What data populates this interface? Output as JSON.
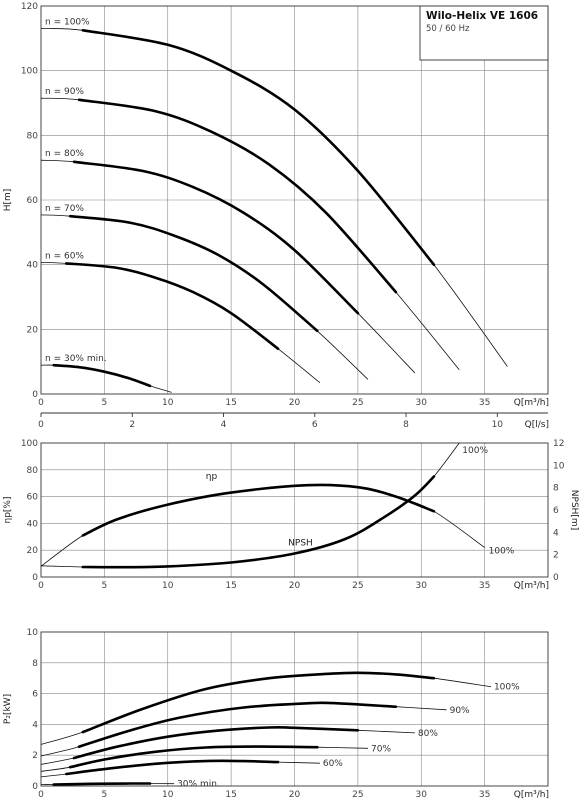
{
  "title": "Wilo-Helix VE 1606",
  "subtitle": "50 / 60 Hz",
  "chart_data": [
    {
      "type": "line",
      "name": "head",
      "xlabel": "Q[m³/h]",
      "ylabel": "H[m]",
      "xlim": [
        0,
        40
      ],
      "ylim": [
        0,
        120
      ],
      "x_ticks": [
        0,
        5,
        10,
        15,
        20,
        25,
        30,
        35
      ],
      "y_ticks": [
        0,
        20,
        40,
        60,
        80,
        100,
        120
      ],
      "secondary_x": {
        "label": "Q[l/s]",
        "ticks": [
          0,
          2,
          4,
          6,
          8,
          10
        ]
      },
      "series": [
        {
          "name": "n = 100%",
          "x": [
            0,
            3.3,
            10,
            15,
            20,
            25,
            31,
            36.8
          ],
          "y": [
            113,
            112.5,
            108,
            100,
            88,
            69,
            40,
            8.5
          ],
          "op_range": [
            3.3,
            31
          ]
        },
        {
          "name": "n = 90%",
          "x": [
            0,
            3.0,
            9,
            13.5,
            18,
            22.5,
            28,
            33
          ],
          "y": [
            91.5,
            91,
            87.5,
            81,
            71,
            56,
            31.5,
            7.5
          ],
          "op_range": [
            3.0,
            28
          ]
        },
        {
          "name": "n = 80%",
          "x": [
            0,
            2.6,
            8,
            12,
            16,
            20,
            25,
            29.5
          ],
          "y": [
            72.3,
            71.8,
            69,
            64,
            56,
            44.5,
            25,
            6.5
          ],
          "op_range": [
            2.6,
            25
          ]
        },
        {
          "name": "n = 70%",
          "x": [
            0,
            2.3,
            7,
            10.5,
            14,
            17.5,
            21.8,
            25.8
          ],
          "y": [
            55.4,
            55,
            53,
            49,
            43,
            34,
            19.5,
            4.5
          ],
          "op_range": [
            2.3,
            21.8
          ]
        },
        {
          "name": "n = 60%",
          "x": [
            0,
            2.0,
            6,
            9,
            12,
            15,
            18.7,
            22
          ],
          "y": [
            40.7,
            40.4,
            39,
            36,
            31.5,
            25,
            14,
            3.5
          ],
          "op_range": [
            2.0,
            18.7
          ]
        },
        {
          "name": "n = 30% min.",
          "x": [
            0,
            1,
            3,
            5,
            7,
            8.6,
            10.3
          ],
          "y": [
            8.9,
            8.9,
            8.3,
            6.9,
            4.8,
            2.5,
            0.5
          ],
          "op_range": [
            1,
            8.6
          ]
        }
      ]
    },
    {
      "type": "line",
      "name": "efficiency-npsh",
      "xlabel": "Q[m³/h]",
      "ylabel": "ηp[%]",
      "y2label": "NPSH[m]",
      "xlim": [
        0,
        40
      ],
      "ylim": [
        0,
        100
      ],
      "y2lim": [
        0,
        12
      ],
      "x_ticks": [
        0,
        5,
        10,
        15,
        20,
        25,
        30,
        35
      ],
      "y_ticks": [
        0,
        20,
        40,
        60,
        80,
        100
      ],
      "y2_ticks": [
        0,
        2,
        4,
        6,
        8,
        10,
        12
      ],
      "series": [
        {
          "name": "ηp",
          "axis": "left",
          "x": [
            0,
            3.3,
            6,
            10,
            15,
            21,
            25,
            28,
            31,
            35
          ],
          "y": [
            8,
            31,
            43,
            54,
            63,
            68.5,
            67,
            60,
            49,
            22
          ],
          "op_range": [
            3.3,
            31
          ],
          "end_label": "100%"
        },
        {
          "name": "NPSH",
          "axis": "right",
          "x": [
            0,
            3.3,
            6,
            10,
            15,
            20,
            24,
            27,
            29.5,
            31,
            33
          ],
          "y": [
            1.0,
            0.9,
            0.88,
            0.95,
            1.3,
            2.1,
            3.4,
            5.3,
            7.3,
            9.0,
            12
          ],
          "op_range": [
            3.3,
            31
          ],
          "end_label": "100%"
        }
      ]
    },
    {
      "type": "line",
      "name": "power",
      "xlabel": "Q[m³/h]",
      "ylabel": "P₂[kW]",
      "xlim": [
        0,
        40
      ],
      "ylim": [
        0,
        10
      ],
      "x_ticks": [
        0,
        5,
        10,
        15,
        20,
        25,
        30,
        35
      ],
      "y_ticks": [
        0,
        2,
        4,
        6,
        8,
        10
      ],
      "series": [
        {
          "name": "100%",
          "x": [
            0,
            3.3,
            8,
            13,
            18,
            23,
            25,
            28,
            31,
            35.5
          ],
          "y": [
            2.7,
            3.5,
            5.0,
            6.3,
            7.0,
            7.3,
            7.35,
            7.25,
            7.0,
            6.45
          ],
          "op_range": [
            3.3,
            31
          ]
        },
        {
          "name": "90%",
          "x": [
            0,
            3.0,
            7,
            11,
            16,
            21,
            23,
            28,
            32
          ],
          "y": [
            1.95,
            2.55,
            3.6,
            4.45,
            5.1,
            5.37,
            5.38,
            5.15,
            4.95
          ],
          "op_range": [
            3.0,
            28
          ]
        },
        {
          "name": "80%",
          "x": [
            0,
            2.6,
            6,
            10,
            14,
            18,
            20,
            25,
            29.5
          ],
          "y": [
            1.4,
            1.82,
            2.55,
            3.2,
            3.6,
            3.8,
            3.78,
            3.62,
            3.45
          ],
          "op_range": [
            2.6,
            25
          ]
        },
        {
          "name": "70%",
          "x": [
            0,
            2.3,
            5,
            9,
            13,
            17,
            21.8,
            25.8
          ],
          "y": [
            0.95,
            1.22,
            1.72,
            2.22,
            2.5,
            2.56,
            2.52,
            2.45
          ],
          "op_range": [
            2.3,
            21.8
          ]
        },
        {
          "name": "60%",
          "x": [
            0,
            2.0,
            5,
            9,
            13,
            16,
            18.7,
            22
          ],
          "y": [
            0.6,
            0.78,
            1.1,
            1.44,
            1.62,
            1.62,
            1.55,
            1.48
          ],
          "op_range": [
            2.0,
            18.7
          ]
        },
        {
          "name": "30% min.",
          "x": [
            0,
            1,
            4,
            7,
            8.6,
            10.5
          ],
          "y": [
            0.1,
            0.1,
            0.14,
            0.16,
            0.16,
            0.15
          ],
          "op_range": [
            1,
            8.6
          ]
        }
      ]
    }
  ]
}
